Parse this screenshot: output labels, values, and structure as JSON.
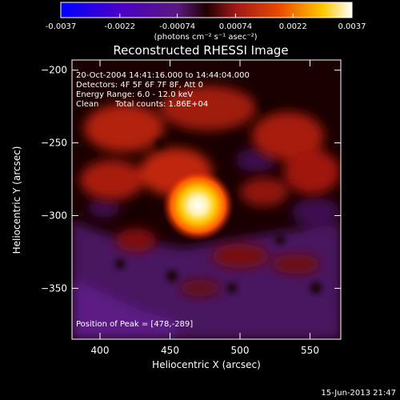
{
  "colorbar": {
    "min": -0.0037,
    "max": 0.0037,
    "tick_labels": [
      "-0.0037",
      "-0.0022",
      "-0.00074",
      "0.00074",
      "0.0022",
      "0.0037"
    ],
    "tick_values": [
      -0.0037,
      -0.0022,
      -0.00074,
      0.00074,
      0.0022,
      0.0037
    ],
    "units_label": "(photons cm⁻² s⁻¹ asec⁻²)",
    "colors": [
      "#0000ff",
      "#4b00c8",
      "#6a1090",
      "#a01818",
      "#e03000",
      "#ff7a00",
      "#ffd200",
      "#ffffff"
    ]
  },
  "title": "Reconstructed RHESSI Image",
  "annotations": {
    "time_range": "20-Oct-2004 14:41:16.000 to 14:44:04.000",
    "detectors": "Detectors: 4F 5F 6F 7F 8F, Att 0",
    "energy_range": "Energy Range: 6.0 - 12.0 keV",
    "algorithm": "Clean",
    "total_counts": "Total counts: 1.86E+04",
    "peak_position": "Position of Peak = [478,-289]"
  },
  "axes": {
    "xlabel": "Heliocentric X (arcsec)",
    "ylabel": "Heliocentric Y (arcsec)",
    "x_range": [
      380,
      572
    ],
    "y_range": [
      -385,
      -193
    ],
    "x_ticks": [
      400,
      450,
      500,
      550
    ],
    "x_tick_labels": [
      "400",
      "450",
      "500",
      "550"
    ],
    "y_ticks": [
      -200,
      -250,
      -300,
      -350
    ],
    "y_tick_labels": [
      "−200",
      "−250",
      "−300",
      "−350"
    ]
  },
  "peak": {
    "x": 478,
    "y": -289
  },
  "footer_timestamp": "15-Jun-2013 21:47"
}
